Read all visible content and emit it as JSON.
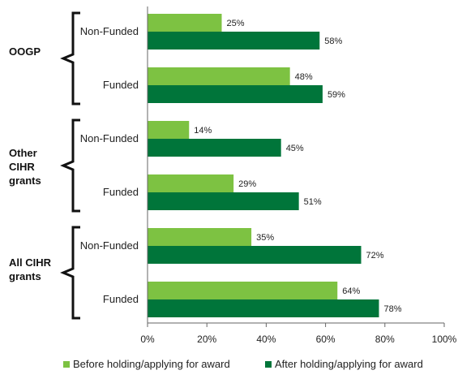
{
  "chart_data": {
    "type": "bar",
    "orientation": "horizontal",
    "categories": [
      {
        "group": "OOGP",
        "label": "Non-Funded",
        "before": 25,
        "after": 58
      },
      {
        "group": "OOGP",
        "label": "Funded",
        "before": 48,
        "after": 59
      },
      {
        "group": "Other CIHR grants",
        "label": "Non-Funded",
        "before": 14,
        "after": 45
      },
      {
        "group": "Other CIHR grants",
        "label": "Funded",
        "before": 29,
        "after": 51
      },
      {
        "group": "All CIHR grants",
        "label": "Non-Funded",
        "before": 35,
        "after": 72
      },
      {
        "group": "All CIHR grants",
        "label": "Funded",
        "before": 64,
        "after": 78
      }
    ],
    "groups": [
      {
        "name_lines": [
          "OOGP"
        ]
      },
      {
        "name_lines": [
          "Other",
          "CIHR",
          "grants"
        ]
      },
      {
        "name_lines": [
          "All CIHR",
          "grants"
        ]
      }
    ],
    "series": [
      {
        "name": "Before holding/applying for award",
        "key": "before",
        "color": "#7dc242"
      },
      {
        "name": "After holding/applying for award",
        "key": "after",
        "color": "#00753a"
      }
    ],
    "xlim": [
      0,
      100
    ],
    "xticks": [
      "0%",
      "20%",
      "40%",
      "60%",
      "80%",
      "100%"
    ],
    "value_suffix": "%",
    "legend_position": "bottom",
    "grid": false
  }
}
